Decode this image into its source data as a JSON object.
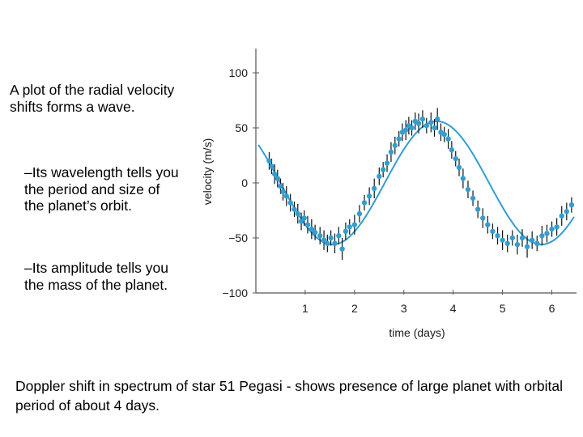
{
  "text": {
    "intro": "A plot of the radial velocity shifts forms a wave.",
    "bullet_1": "–Its wavelength tells you the period and size of the planet’s orbit.",
    "bullet_2": "–Its amplitude tells you the mass of the planet.",
    "caption": "Doppler shift in spectrum of star 51 Pegasi - shows presence of large planet with orbital period of about 4 days."
  },
  "chart_data": {
    "type": "scatter",
    "xlabel": "time (days)",
    "ylabel": "velocity (m/s)",
    "xlim": [
      0,
      6.5
    ],
    "ylim": [
      -100,
      100
    ],
    "x_ticks": [
      1,
      2,
      3,
      4,
      5,
      6
    ],
    "y_ticks": [
      100,
      50,
      0,
      -50,
      -100
    ],
    "y_tick_labels": [
      "100",
      "50",
      "0",
      "−50",
      "−100"
    ],
    "grid": false,
    "colors": {
      "data": "#2e9fd4",
      "fit": "#2e9fd4",
      "error_bars": "#111111",
      "axes": "#555555"
    },
    "fit_curve": {
      "model": "sinusoid",
      "amplitude": 56,
      "period_days": 4.23,
      "peak_day": 3.67,
      "offset": 0
    },
    "series": [
      {
        "x": [
          0.27,
          0.32,
          0.38,
          0.44,
          0.5,
          0.55,
          0.62,
          0.7,
          0.78,
          0.85,
          0.92,
          0.98,
          1.05,
          1.13,
          1.2,
          1.3,
          1.38,
          1.45,
          1.52,
          1.6,
          1.68,
          1.75,
          1.82,
          1.9,
          2.0,
          2.1,
          2.2,
          2.3,
          2.4,
          2.5,
          2.58,
          2.66,
          2.74,
          2.82,
          2.9,
          2.97,
          3.04,
          3.1,
          3.16,
          3.23,
          3.3,
          3.38,
          3.46,
          3.55,
          3.62,
          3.68,
          3.75,
          3.82,
          3.9,
          3.97,
          4.05,
          4.12,
          4.2,
          4.3,
          4.4,
          4.5,
          4.6,
          4.7,
          4.8,
          4.9,
          5.0,
          5.1,
          5.2,
          5.3,
          5.4,
          5.5,
          5.6,
          5.7,
          5.8,
          5.9,
          6.0,
          6.1,
          6.2,
          6.3,
          6.4
        ],
        "y": [
          20,
          15,
          8,
          4,
          -3,
          -8,
          -12,
          -18,
          -24,
          -28,
          -35,
          -32,
          -38,
          -42,
          -45,
          -48,
          -52,
          -55,
          -50,
          -55,
          -48,
          -60,
          -44,
          -40,
          -38,
          -28,
          -18,
          -12,
          -5,
          6,
          12,
          18,
          28,
          34,
          40,
          46,
          48,
          52,
          50,
          56,
          54,
          58,
          52,
          55,
          50,
          58,
          46,
          44,
          40,
          30,
          22,
          14,
          4,
          -6,
          -14,
          -24,
          -32,
          -38,
          -44,
          -48,
          -52,
          -55,
          -50,
          -56,
          -50,
          -58,
          -52,
          -55,
          -48,
          -46,
          -42,
          -40,
          -30,
          -26,
          -20
        ],
        "err": [
          8,
          7,
          9,
          8,
          7,
          8,
          9,
          8,
          7,
          9,
          8,
          7,
          8,
          9,
          7,
          8,
          9,
          8,
          7,
          9,
          8,
          10,
          8,
          7,
          9,
          8,
          7,
          8,
          9,
          8,
          7,
          8,
          9,
          8,
          7,
          8,
          9,
          8,
          7,
          8,
          9,
          8,
          7,
          9,
          8,
          10,
          8,
          7,
          9,
          8,
          7,
          8,
          9,
          8,
          7,
          8,
          9,
          8,
          7,
          8,
          9,
          8,
          7,
          9,
          8,
          10,
          8,
          7,
          9,
          8,
          7,
          8,
          9,
          8,
          7
        ]
      }
    ]
  }
}
